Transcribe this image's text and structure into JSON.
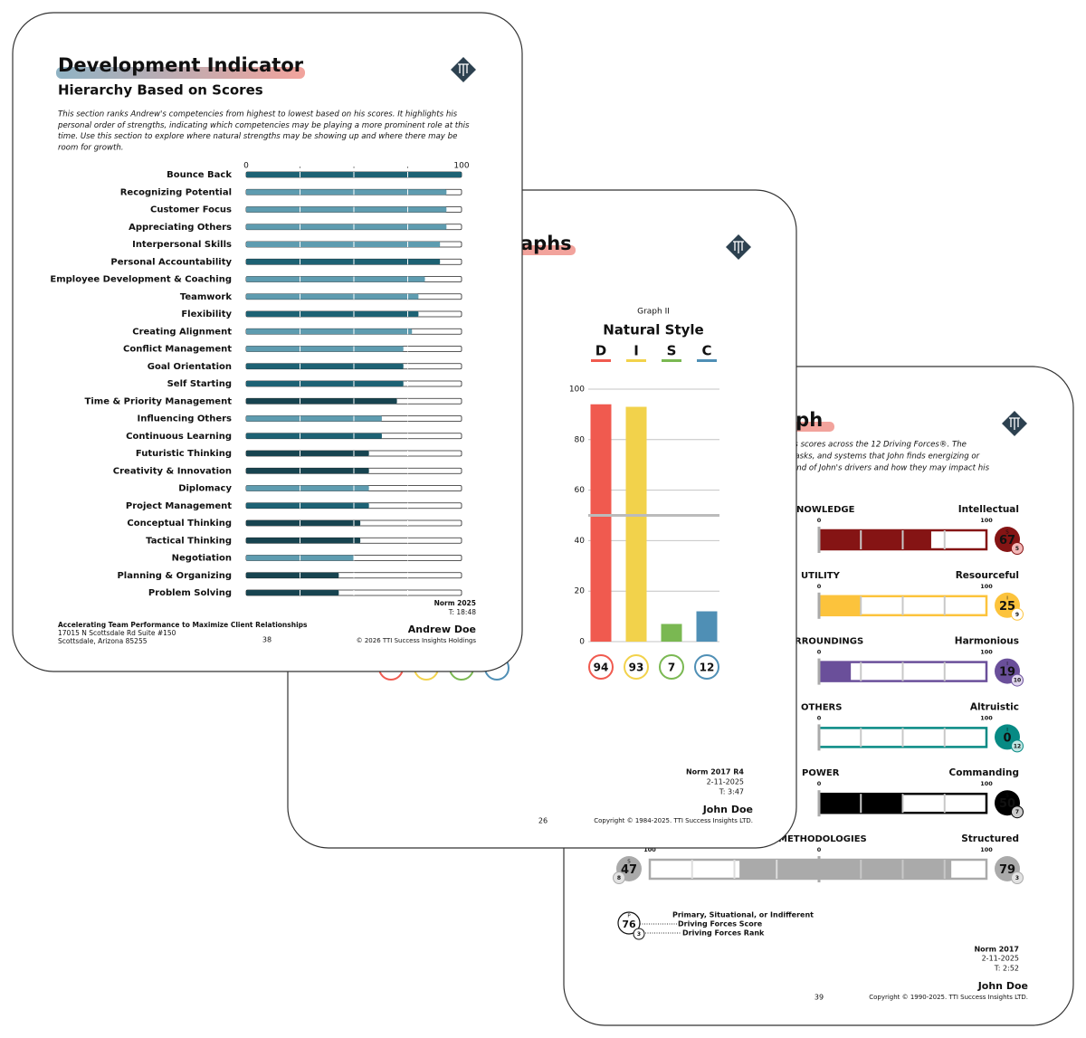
{
  "page1": {
    "title": "Development Indicator",
    "subtitle": "Hierarchy Based on Scores",
    "intro": [
      "This section ranks Andrew's competencies from highest to lowest based on his scores.  It highlights his",
      "personal order of strengths, indicating which competencies may be playing a more prominent role at this",
      "time.  Use this section to explore where natural strengths may be showing up and where there may be",
      "room for growth."
    ],
    "axis": {
      "xlim": [
        0,
        100
      ],
      "xticks": [
        0,
        {
          "value": 25,
          "label": "."
        },
        {
          "value": 50,
          "label": "."
        },
        {
          "value": 75,
          "label": "."
        },
        100
      ]
    },
    "rows": [
      {
        "label": "Bounce Back",
        "value": 100,
        "color": "#1d6274"
      },
      {
        "label": "Recognizing Potential",
        "value": 93,
        "color": "#5e9cb0"
      },
      {
        "label": "Customer Focus",
        "value": 93,
        "color": "#5e9cb0"
      },
      {
        "label": "Appreciating Others",
        "value": 93,
        "color": "#5e9cb0"
      },
      {
        "label": "Interpersonal Skills",
        "value": 90,
        "color": "#5e9cb0"
      },
      {
        "label": "Personal Accountability",
        "value": 90,
        "color": "#1d6274"
      },
      {
        "label": "Employee Development & Coaching",
        "value": 83,
        "color": "#5e9cb0"
      },
      {
        "label": "Teamwork",
        "value": 80,
        "color": "#5e9cb0"
      },
      {
        "label": "Flexibility",
        "value": 80,
        "color": "#1d6274"
      },
      {
        "label": "Creating Alignment",
        "value": 77,
        "color": "#5e9cb0"
      },
      {
        "label": "Conflict Management",
        "value": 73,
        "color": "#5e9cb0"
      },
      {
        "label": "Goal Orientation",
        "value": 73,
        "color": "#1d6274"
      },
      {
        "label": "Self Starting",
        "value": 73,
        "color": "#1d6274"
      },
      {
        "label": "Time & Priority Management",
        "value": 70,
        "color": "#174450"
      },
      {
        "label": "Influencing Others",
        "value": 63,
        "color": "#5e9cb0"
      },
      {
        "label": "Continuous Learning",
        "value": 63,
        "color": "#1d6274"
      },
      {
        "label": "Futuristic Thinking",
        "value": 57,
        "color": "#174450"
      },
      {
        "label": "Creativity & Innovation",
        "value": 57,
        "color": "#174450"
      },
      {
        "label": "Diplomacy",
        "value": 57,
        "color": "#5e9cb0"
      },
      {
        "label": "Project Management",
        "value": 57,
        "color": "#1d6274"
      },
      {
        "label": "Conceptual Thinking",
        "value": 53,
        "color": "#174450"
      },
      {
        "label": "Tactical Thinking",
        "value": 53,
        "color": "#174450"
      },
      {
        "label": "Negotiation",
        "value": 50,
        "color": "#5e9cb0"
      },
      {
        "label": "Planning & Organizing",
        "value": 43,
        "color": "#174450"
      },
      {
        "label": "Problem Solving",
        "value": 43,
        "color": "#174450"
      }
    ],
    "norm": "Norm 2025",
    "time": "T: 18:48",
    "footer_title": "Accelerating Team Performance to Maximize Client Relationships",
    "address": [
      "17015 N Scottsdale Rd Suite #150",
      "Scottsdale, Arizona 85255"
    ],
    "page_number": 38,
    "name": "Andrew Doe",
    "copyright": "© 2026 TTI Success Insights Holdings"
  },
  "page2": {
    "title_fragment": "aphs",
    "chart_data": {
      "type": "bar",
      "label": "Graph II",
      "title": "Natural Style",
      "categories": [
        "D",
        "I",
        "S",
        "C"
      ],
      "colors": [
        "#f05a4f",
        "#f2d24b",
        "#7ab852",
        "#4f8fb5"
      ],
      "values": [
        94,
        93,
        7,
        12
      ],
      "ylim": [
        0,
        100
      ],
      "yticks": [
        0,
        20,
        40,
        60,
        80,
        100
      ],
      "midline": 50,
      "grid": true
    },
    "norm": "Norm 2017 R4",
    "date": "2-11-2025",
    "time": "T: 3:47",
    "name": "John Doe",
    "page_number": 26,
    "copyright": "Copyright © 1984-2025. TTI Success Insights LTD."
  },
  "page3": {
    "title_fragment": "aph",
    "intro": [
      "'s scores across the 12 Driving Forces®.  The",
      "tasks, and systems that John finds energizing or",
      "end of John's drivers and how they may impact his"
    ],
    "scale": {
      "xlim": [
        0,
        100
      ],
      "xticks": [
        0,
        100
      ]
    },
    "rows": [
      {
        "left_label": "NOWLEDGE",
        "right_label": "Intellectual",
        "primary": true,
        "color": "#851414",
        "light": "#f3b8b8",
        "letter": "S",
        "score": 67,
        "rank": 5
      },
      {
        "left_label": "UTILITY",
        "right_label": "Resourceful",
        "primary": true,
        "color": "#fcc33c",
        "light": "#ffffff",
        "letter": "I",
        "score": 25,
        "rank": 9
      },
      {
        "left_label": "RROUNDINGS",
        "right_label": "Harmonious",
        "primary": false,
        "color": "#6a4f9a",
        "light": "#e0d6ee",
        "letter": "I",
        "score": 19,
        "rank": 10
      },
      {
        "left_label": "OTHERS",
        "right_label": "Altruistic",
        "primary": false,
        "color": "#078a84",
        "light": "#bfe6e3",
        "letter": "I",
        "score": 0,
        "rank": 12
      },
      {
        "left_label": "POWER",
        "right_label": "Commanding",
        "primary": false,
        "color": "#000000",
        "light": "#cccccc",
        "letter": "S",
        "score": 50,
        "rank": 7
      },
      {
        "left_label": "METHODOLOGIES",
        "right_label": "Structured",
        "primary": true,
        "color": "#aaaaaa",
        "light": "#e2e2e2",
        "left_letter": "S",
        "left_score": 47,
        "left_rank": 8,
        "left_tick": 100,
        "score": 79,
        "rank": 3
      }
    ],
    "legend": {
      "letter": "P",
      "score": 76,
      "rank": 3,
      "texts": [
        "Primary, Situational, or Indifferent",
        "Driving Forces Score",
        "Driving Forces Rank"
      ]
    },
    "norm": "Norm 2017",
    "date": "2-11-2025",
    "time": "T: 2:52",
    "name": "John Doe",
    "page_number": 39,
    "copyright": "Copyright © 1990-2025. TTI Success Insights LTD."
  }
}
